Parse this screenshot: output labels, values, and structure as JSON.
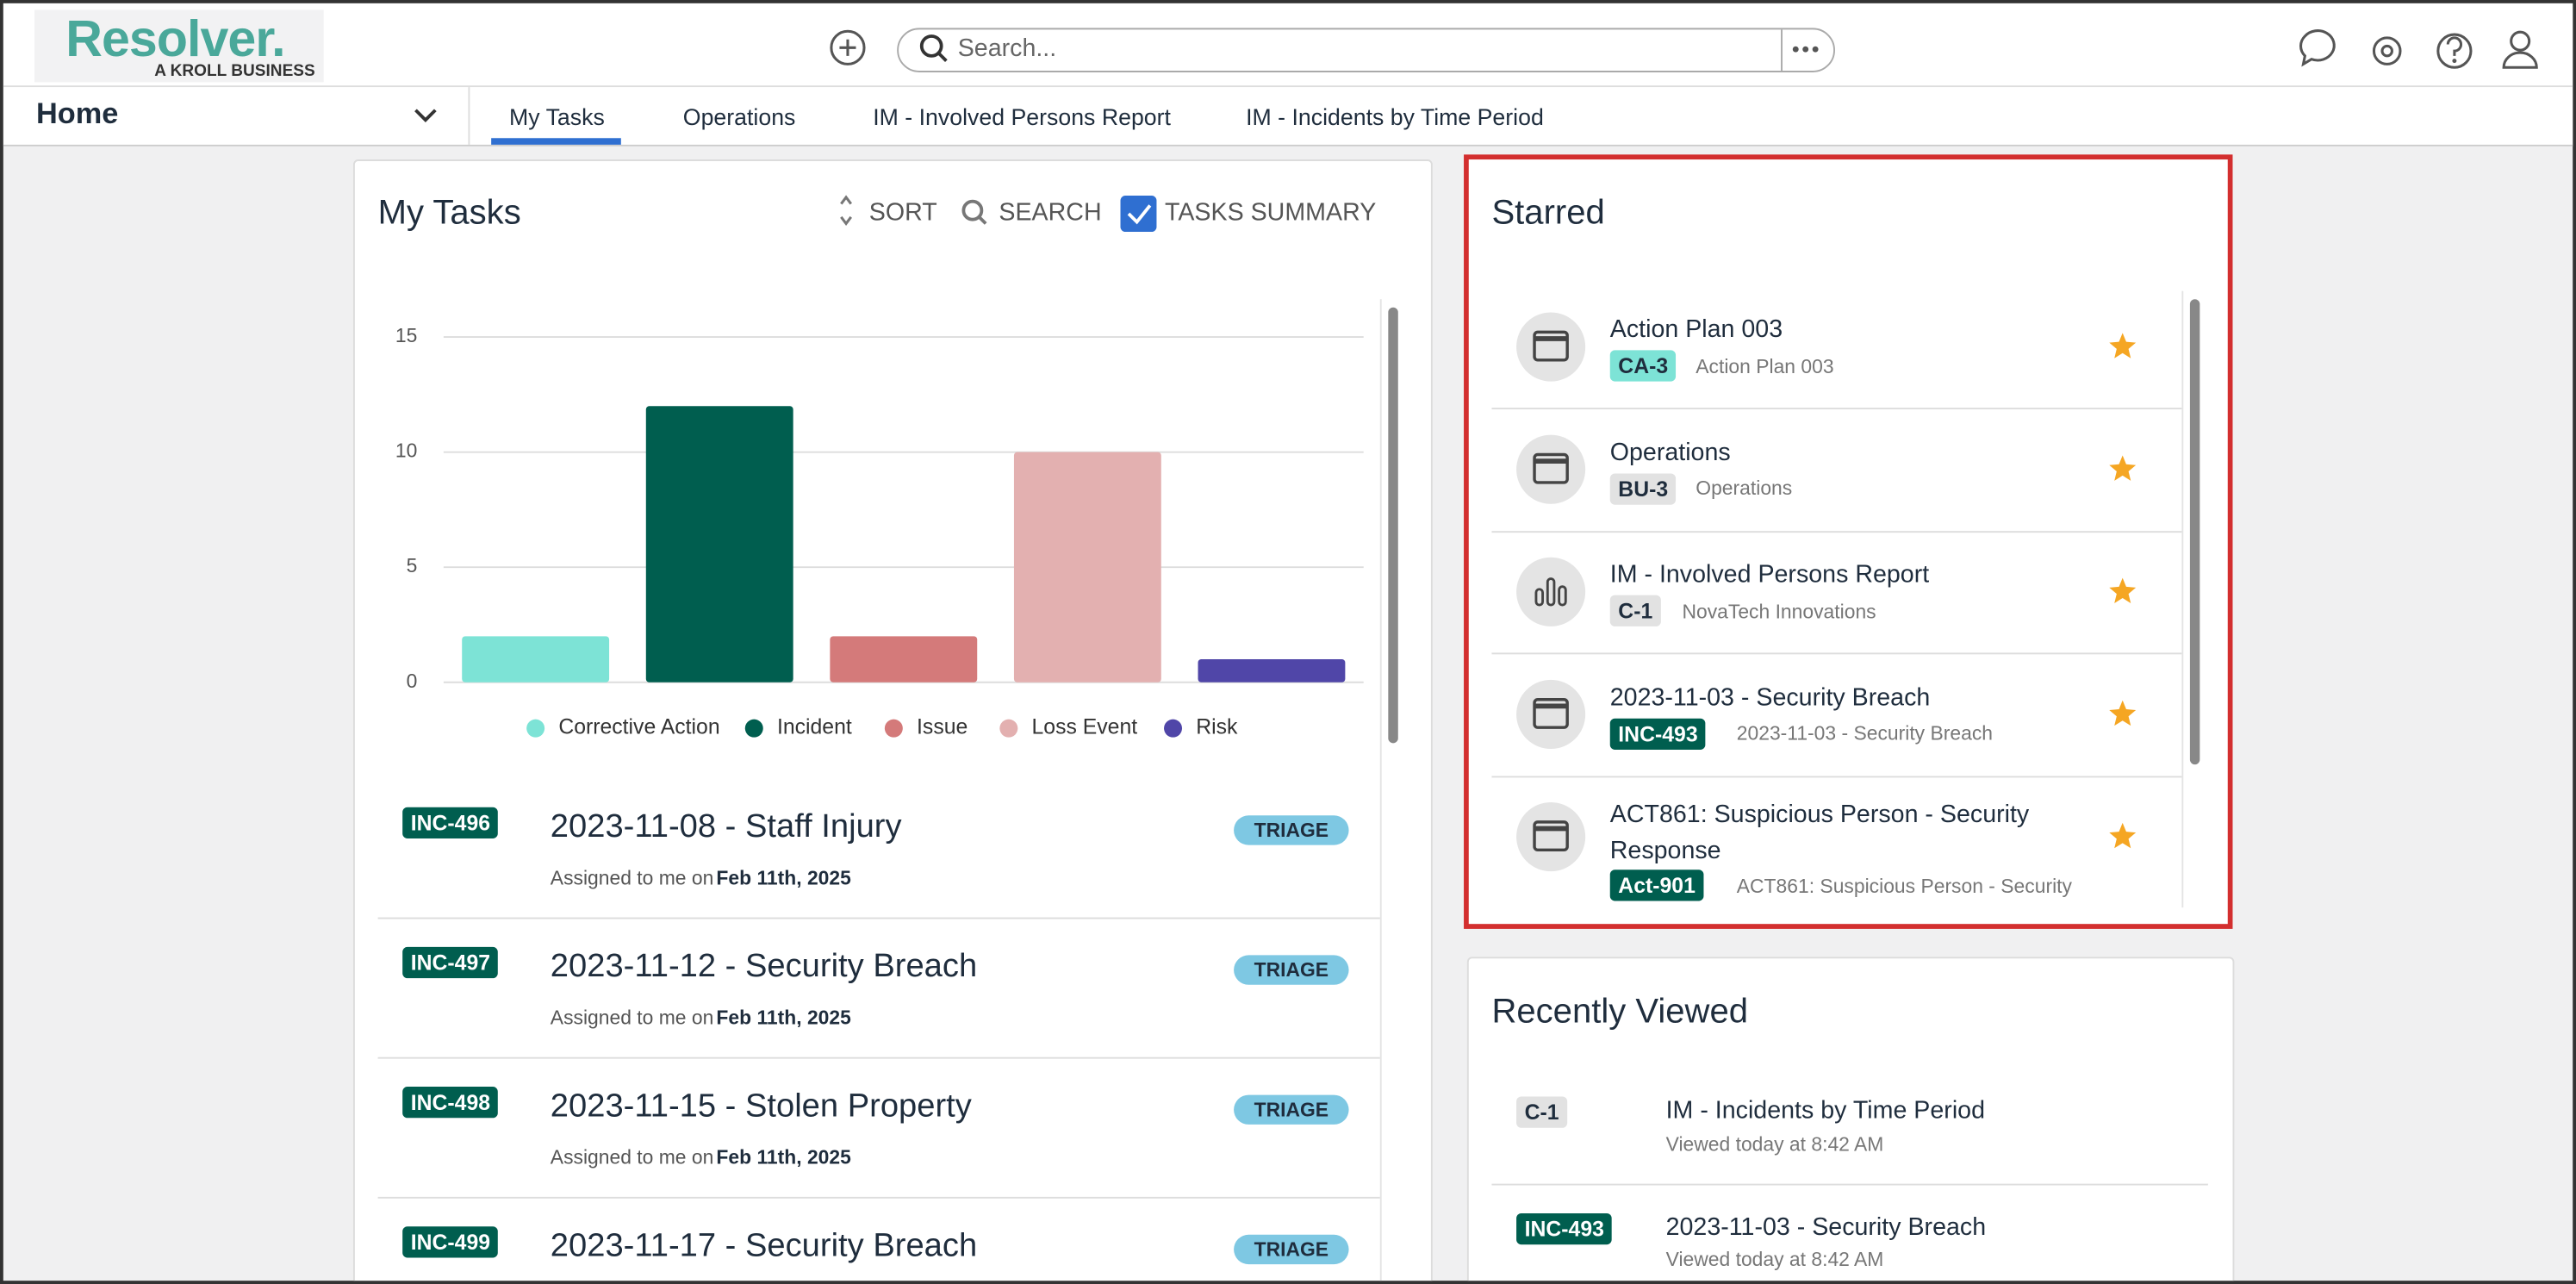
{
  "header": {
    "logo": "Resolver.",
    "logo_sub": "A KROLL BUSINESS",
    "search_placeholder": "Search..."
  },
  "nav": {
    "home": "Home",
    "tabs": [
      "My Tasks",
      "Operations",
      "IM - Involved Persons Report",
      "IM - Incidents by Time Period"
    ]
  },
  "my_tasks": {
    "title": "My Tasks",
    "controls": [
      "SORT",
      "SEARCH",
      "TASKS SUMMARY"
    ],
    "tasks": [
      {
        "id": "INC-496",
        "title": "2023-11-08 - Staff Injury",
        "assigned": "Assigned to me on",
        "date": "Feb 11th, 2025",
        "status": "TRIAGE"
      },
      {
        "id": "INC-497",
        "title": "2023-11-12 - Security Breach",
        "assigned": "Assigned to me on",
        "date": "Feb 11th, 2025",
        "status": "TRIAGE"
      },
      {
        "id": "INC-498",
        "title": "2023-11-15 - Stolen Property",
        "assigned": "Assigned to me on",
        "date": "Feb 11th, 2025",
        "status": "TRIAGE"
      },
      {
        "id": "INC-499",
        "title": "2023-11-17 - Security Breach",
        "status": "TRIAGE"
      }
    ]
  },
  "chart_data": {
    "type": "bar",
    "categories": [
      "Corrective Action",
      "Incident",
      "Issue",
      "Loss Event",
      "Risk"
    ],
    "values": [
      2,
      12,
      2,
      10,
      1
    ],
    "colors": [
      "#7de3d6",
      "#005e4f",
      "#d47a7a",
      "#e3b0b0",
      "#5046a8"
    ],
    "ylim": [
      0,
      15
    ],
    "yticks": [
      0,
      5,
      10,
      15
    ],
    "grid": true,
    "legend": "bottom"
  },
  "starred": {
    "title": "Starred",
    "items": [
      {
        "title": "Action Plan 003",
        "code": "CA-3",
        "subtitle": "Action Plan 003",
        "badge_color": "#7de3d6",
        "icon": "window"
      },
      {
        "title": "Operations",
        "code": "BU-3",
        "subtitle": "Operations",
        "badge_color": "#e2e2e2",
        "icon": "window"
      },
      {
        "title": "IM - Involved Persons Report",
        "code": "C-1",
        "subtitle": "NovaTech Innovations",
        "badge_color": "#e2e2e2",
        "icon": "chart"
      },
      {
        "title": "2023-11-03 - Security Breach",
        "code": "INC-493",
        "subtitle": "2023-11-03 - Security Breach",
        "badge_color": "#005e4f",
        "icon": "window"
      },
      {
        "title": "ACT861: Suspicious Person - Security Response",
        "code": "Act-901",
        "subtitle": "ACT861: Suspicious Person - Security",
        "badge_color": "#005e4f",
        "icon": "window"
      }
    ]
  },
  "recently_viewed": {
    "title": "Recently Viewed",
    "items": [
      {
        "code": "C-1",
        "title": "IM - Incidents by Time Period",
        "viewed": "Viewed today at 8:42 AM",
        "badge_color": "#e2e2e2"
      },
      {
        "code": "INC-493",
        "title": "2023-11-03 - Security Breach",
        "viewed": "Viewed today at 8:42 AM",
        "badge_color": "#005e4f"
      }
    ]
  }
}
